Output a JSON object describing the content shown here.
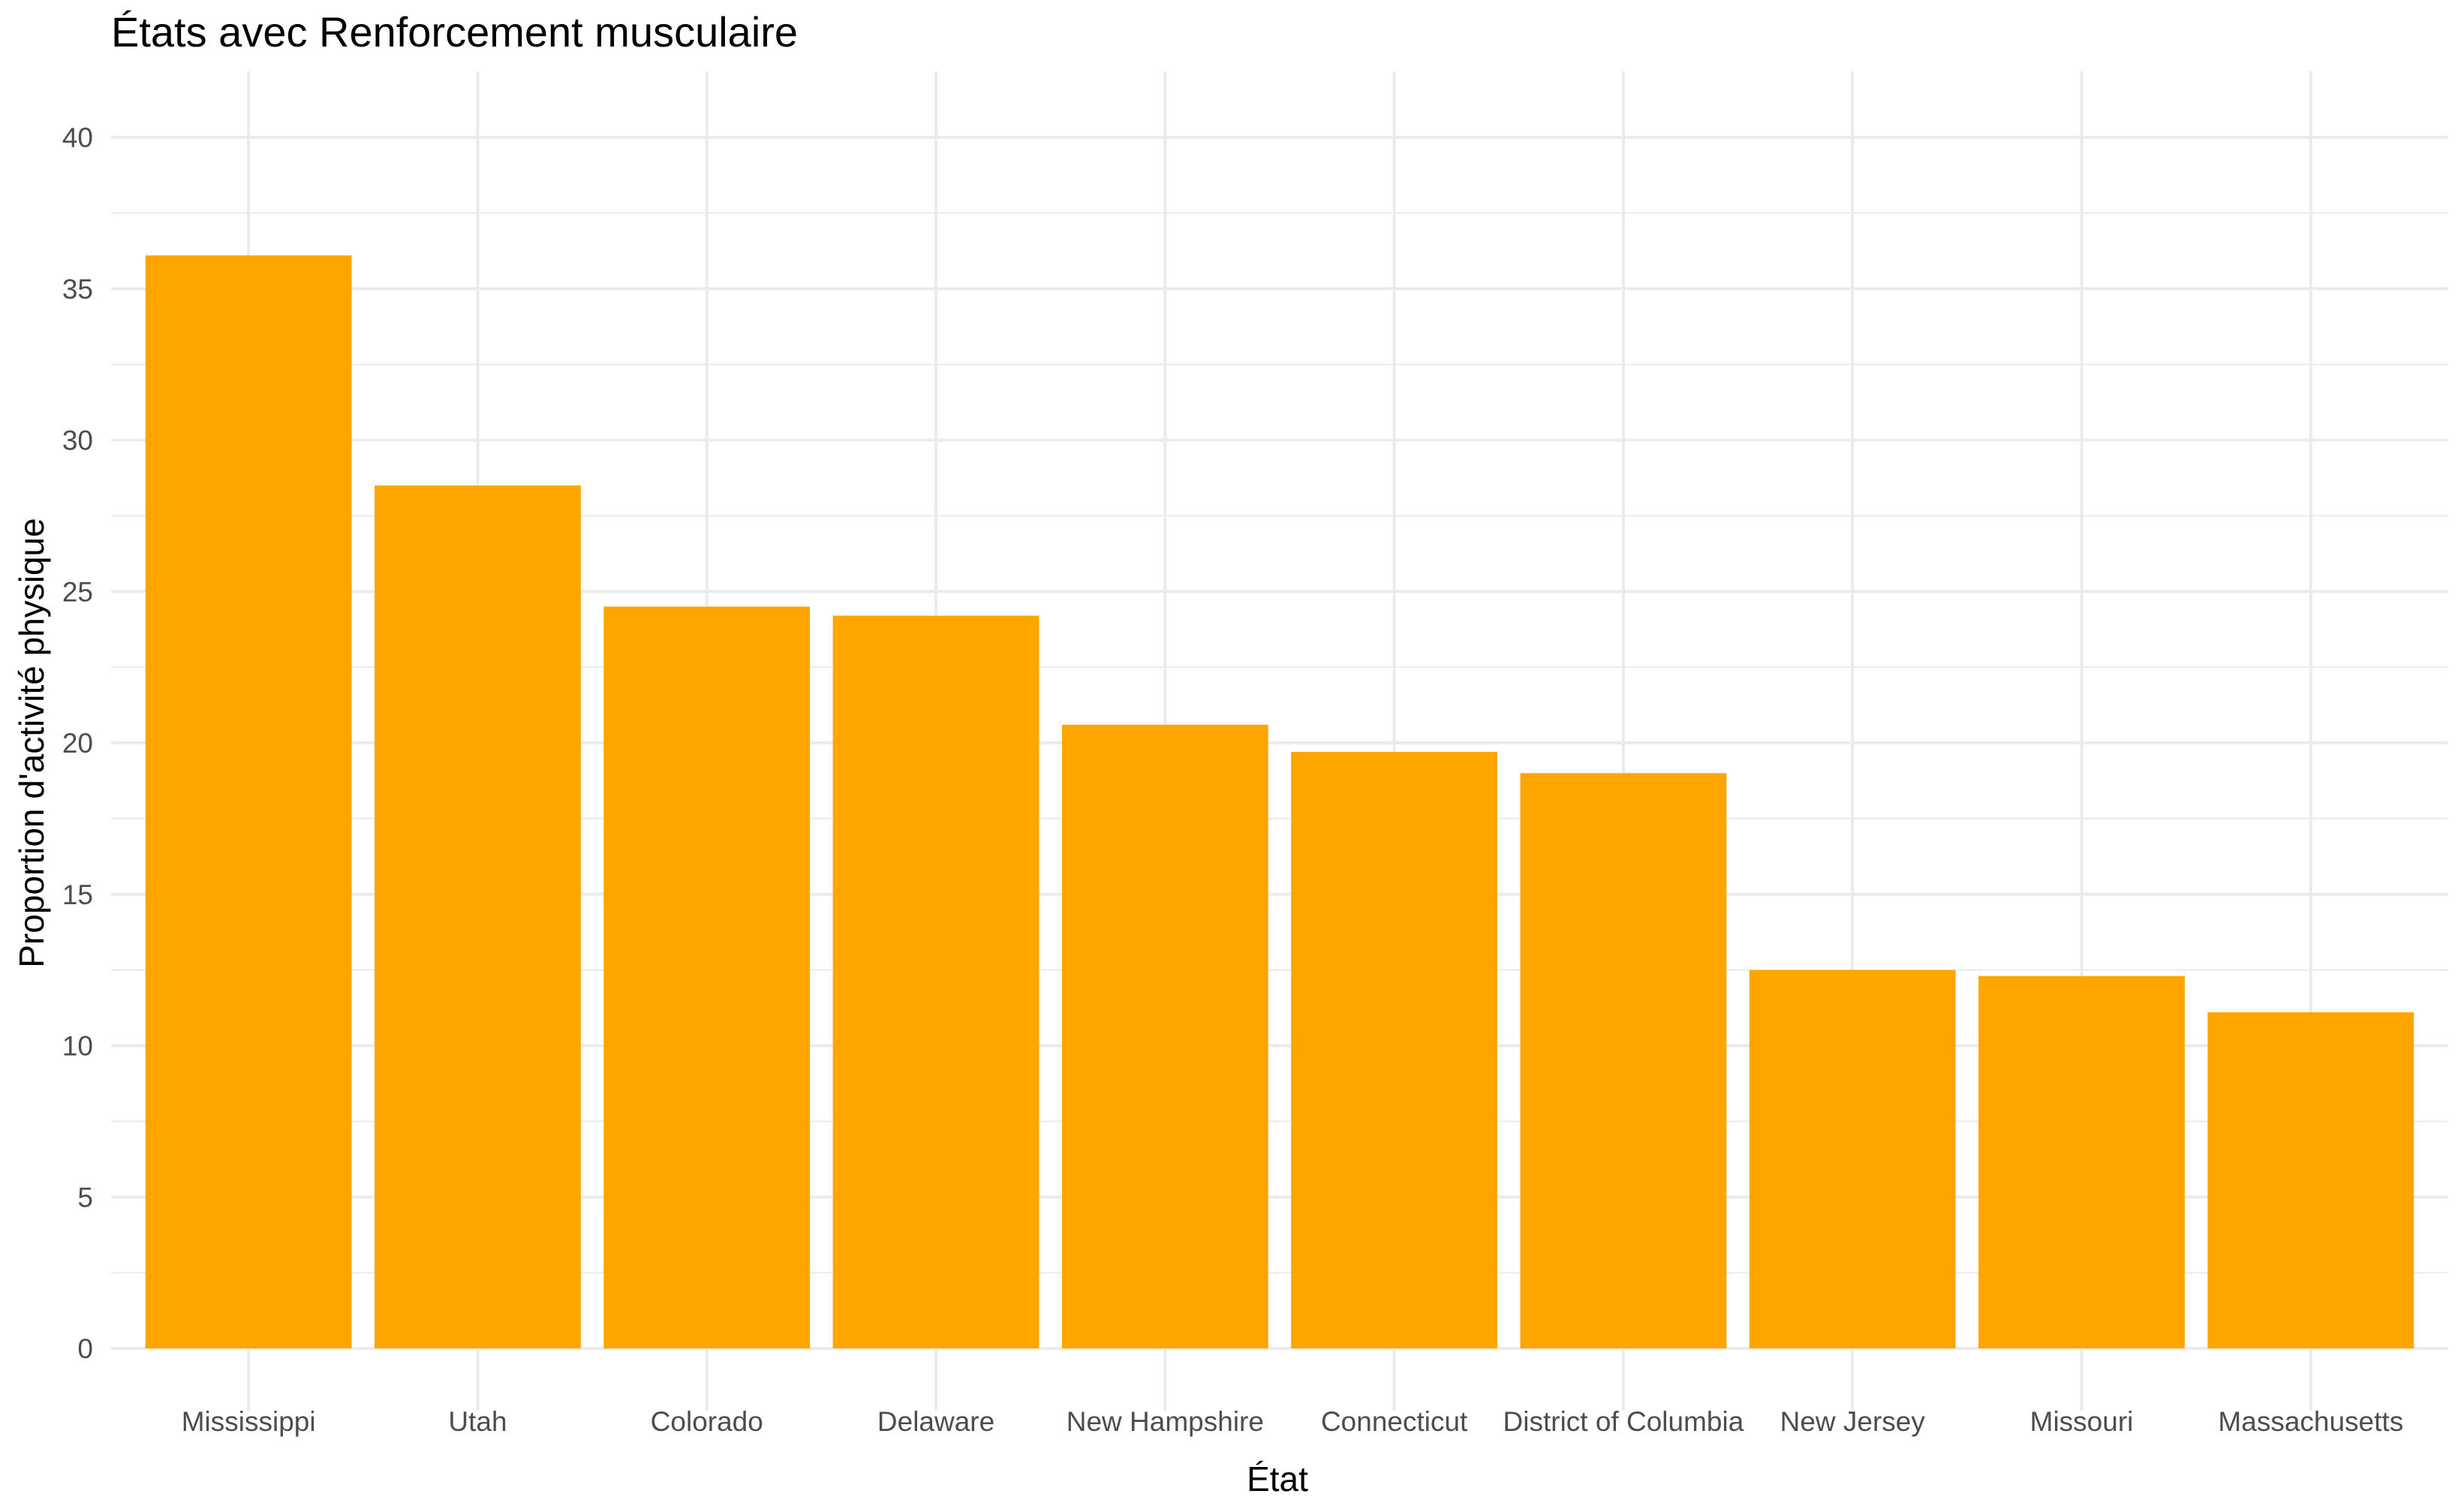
{
  "chart_data": {
    "type": "bar",
    "title": "États avec Renforcement musculaire",
    "xlabel": "État",
    "ylabel": "Proportion d'activité physique",
    "categories": [
      "Mississippi",
      "Utah",
      "Colorado",
      "Delaware",
      "New Hampshire",
      "Connecticut",
      "District of Columbia",
      "New Jersey",
      "Missouri",
      "Massachusetts"
    ],
    "values": [
      36.1,
      28.5,
      24.5,
      24.2,
      20.6,
      19.7,
      19.0,
      12.5,
      12.3,
      11.1
    ],
    "ylim": [
      0,
      40
    ],
    "yticks": [
      0,
      5,
      10,
      15,
      20,
      25,
      30,
      35,
      40
    ],
    "grid": true,
    "bar_color": "#FFA500",
    "grid_color": "#EBEBEB",
    "legend": "none"
  }
}
